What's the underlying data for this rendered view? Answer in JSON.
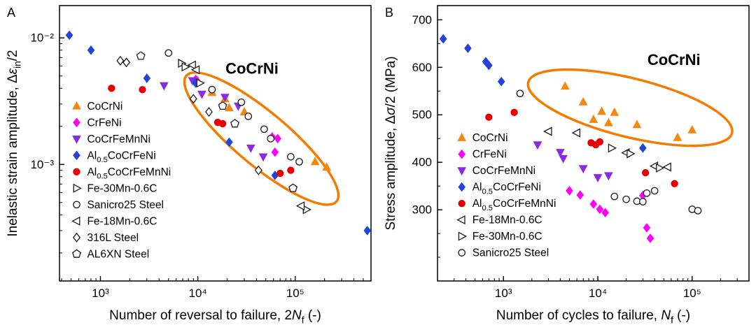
{
  "figure": {
    "background": "#ffffff"
  },
  "chart_data": [
    {
      "type": "scatter",
      "panel_label": "A",
      "x_scale": "log",
      "y_scale": "log",
      "xlim": [
        380,
        600000
      ],
      "ylim": [
        0.00012,
        0.018
      ],
      "x_ticks": [
        {
          "v": 1000,
          "label": "10³"
        },
        {
          "v": 10000,
          "label": "10⁴"
        },
        {
          "v": 100000,
          "label": "10⁵"
        }
      ],
      "y_ticks": [
        {
          "v": 0.001,
          "label": "10⁻³"
        },
        {
          "v": 0.01,
          "label": "10⁻²"
        }
      ],
      "xlabel_segments": [
        {
          "t": "Number of reversal to failure, 2"
        },
        {
          "t": "N",
          "i": true
        },
        {
          "t": "f",
          "sub": true
        },
        {
          "t": " (-)"
        }
      ],
      "ylabel_segments": [
        {
          "t": "Inelastic strain amplitude, Δ"
        },
        {
          "t": "ε",
          "i": true
        },
        {
          "t": "in",
          "sub": true
        },
        {
          "t": "/2"
        }
      ],
      "legend_pos": {
        "fx": 0.055,
        "fy": 0.365
      },
      "annotation": {
        "label": "CoCrNi",
        "color": "#F57C00",
        "cx": 45000,
        "cy": 0.0016,
        "rx": 140,
        "ry": 38,
        "rotate": 40,
        "label_cx": 36000,
        "label_cy": 0.0052
      },
      "series": [
        {
          "name": "CoCrNi",
          "marker": "triangle-up",
          "color": "#F5870F",
          "filled": true,
          "label_segments": [
            {
              "t": "CoCrNi"
            }
          ],
          "points": [
            [
              10000,
              0.0046
            ],
            [
              14000,
              0.0037
            ],
            [
              19000,
              0.0033
            ],
            [
              21000,
              0.0028
            ],
            [
              30000,
              0.0026
            ],
            [
              160000,
              0.00105
            ],
            [
              210000,
              0.00095
            ]
          ]
        },
        {
          "name": "CrFeNi",
          "marker": "diamond",
          "color": "#FF00FF",
          "filled": true,
          "label_segments": [
            {
              "t": "CrFeNi"
            }
          ],
          "points": [
            [
              9500,
              0.0047
            ],
            [
              58000,
              0.00165
            ],
            [
              66000,
              0.0016
            ],
            [
              62000,
              0.00125
            ]
          ]
        },
        {
          "name": "CoCrFeMnNi",
          "marker": "triangle-down",
          "color": "#8A2BE2",
          "filled": true,
          "label_segments": [
            {
              "t": "CoCrFeMnNi"
            }
          ],
          "points": [
            [
              4500,
              0.0042
            ],
            [
              8800,
              0.0046
            ],
            [
              11000,
              0.0036
            ],
            [
              19000,
              0.0034
            ],
            [
              26000,
              0.0029
            ],
            [
              35000,
              0.00135
            ],
            [
              47000,
              0.00115
            ]
          ]
        },
        {
          "name": "Al0.5CoCrFeNi",
          "marker": "diamond",
          "color": "#2244DD",
          "filled": true,
          "label_segments": [
            {
              "t": "Al"
            },
            {
              "t": "0.5",
              "sub": true
            },
            {
              "t": "CoCrFeNi"
            }
          ],
          "points": [
            [
              480,
              0.0105
            ],
            [
              800,
              0.008
            ],
            [
              3000,
              0.0048
            ],
            [
              9500,
              0.0044
            ],
            [
              21000,
              0.0015
            ],
            [
              62000,
              0.00082
            ],
            [
              550000,
              0.0003
            ]
          ]
        },
        {
          "name": "Al0.5CoCrFeMnNi",
          "marker": "circle",
          "color": "#E60000",
          "filled": true,
          "label_segments": [
            {
              "t": "Al"
            },
            {
              "t": "0.5",
              "sub": true
            },
            {
              "t": "CoCrFeMnNi"
            }
          ],
          "points": [
            [
              1300,
              0.004
            ],
            [
              2700,
              0.0039
            ],
            [
              16000,
              0.00215
            ],
            [
              18000,
              0.0021
            ],
            [
              70000,
              0.00085
            ],
            [
              90000,
              0.0009
            ]
          ]
        },
        {
          "name": "Fe-30Mn-0.6C",
          "marker": "triangle-right",
          "color": "#1a1a1a",
          "filled": false,
          "label_segments": [
            {
              "t": "Fe-30Mn-0.6C"
            }
          ],
          "points": [
            [
              6800,
              0.0063
            ],
            [
              7400,
              0.0059
            ],
            [
              10500,
              0.0044
            ],
            [
              130000,
              0.00044
            ]
          ]
        },
        {
          "name": "Sanicro25 Steel",
          "marker": "circle",
          "color": "#1a1a1a",
          "filled": false,
          "label_segments": [
            {
              "t": "Sanicro25 Steel"
            }
          ],
          "points": [
            [
              5000,
              0.0076
            ],
            [
              14000,
              0.0039
            ],
            [
              28000,
              0.0031
            ],
            [
              33000,
              0.0024
            ],
            [
              48000,
              0.0019
            ],
            [
              56000,
              0.0016
            ],
            [
              90000,
              0.00115
            ],
            [
              110000,
              0.00105
            ]
          ]
        },
        {
          "name": "Fe-18Mn-0.6C",
          "marker": "triangle-left",
          "color": "#1a1a1a",
          "filled": false,
          "label_segments": [
            {
              "t": "Fe-18Mn-0.6C"
            }
          ],
          "points": [
            [
              8800,
              0.0061
            ],
            [
              9600,
              0.0056
            ],
            [
              115000,
              0.00047
            ]
          ]
        },
        {
          "name": "316L Steel",
          "marker": "diamond",
          "color": "#1a1a1a",
          "filled": false,
          "label_segments": [
            {
              "t": "316L Steel"
            }
          ],
          "points": [
            [
              1600,
              0.0066
            ],
            [
              1850,
              0.0064
            ],
            [
              9000,
              0.0033
            ],
            [
              13000,
              0.0026
            ],
            [
              42000,
              0.0009
            ]
          ]
        },
        {
          "name": "AL6XN Steel",
          "marker": "pentagon",
          "color": "#1a1a1a",
          "filled": false,
          "label_segments": [
            {
              "t": "AL6XN Steel"
            }
          ],
          "points": [
            [
              2600,
              0.0072
            ],
            [
              18000,
              0.0029
            ],
            [
              24000,
              0.0021
            ],
            [
              95000,
              0.00065
            ]
          ]
        }
      ]
    },
    {
      "type": "scatter",
      "panel_label": "B",
      "x_scale": "log",
      "y_scale": "linear",
      "xlim": [
        200,
        400000
      ],
      "ylim": [
        150,
        730
      ],
      "y_minor_step": 50,
      "x_ticks": [
        {
          "v": 1000,
          "label": "10³"
        },
        {
          "v": 10000,
          "label": "10⁴"
        },
        {
          "v": 100000,
          "label": "10⁵"
        }
      ],
      "y_ticks": [
        {
          "v": 300,
          "label": "300"
        },
        {
          "v": 400,
          "label": "400"
        },
        {
          "v": 500,
          "label": "500"
        },
        {
          "v": 600,
          "label": "600"
        },
        {
          "v": 700,
          "label": "700"
        }
      ],
      "xlabel_segments": [
        {
          "t": "Number of cycles to failure, "
        },
        {
          "t": "N",
          "i": true
        },
        {
          "t": "f",
          "sub": true
        },
        {
          "t": " (-)"
        }
      ],
      "ylabel_segments": [
        {
          "t": "Stress amplitude, Δ"
        },
        {
          "t": "σ",
          "i": true
        },
        {
          "t": "/2 (MPa)"
        }
      ],
      "legend_pos": {
        "fx": 0.078,
        "fy": 0.48
      },
      "annotation": {
        "label": "CoCrNi",
        "color": "#F57C00",
        "cx": 22000,
        "cy": 515,
        "rx": 150,
        "ry": 42,
        "rotate": 14,
        "label_cx": 64000,
        "label_cy": 605
      },
      "series": [
        {
          "name": "CoCrNi",
          "marker": "triangle-up",
          "color": "#F5870F",
          "filled": true,
          "label_segments": [
            {
              "t": "CoCrNi"
            }
          ],
          "points": [
            [
              4500,
              560
            ],
            [
              7000,
              527
            ],
            [
              9000,
              490
            ],
            [
              11000,
              507
            ],
            [
              15000,
              505
            ],
            [
              13000,
              483
            ],
            [
              26000,
              479
            ],
            [
              70000,
              452
            ],
            [
              100000,
              468
            ]
          ]
        },
        {
          "name": "CrFeNi",
          "marker": "diamond",
          "color": "#FF00FF",
          "filled": true,
          "label_segments": [
            {
              "t": "CrFeNi"
            }
          ],
          "points": [
            [
              5000,
              340
            ],
            [
              6500,
              331
            ],
            [
              9000,
              312
            ],
            [
              10500,
              301
            ],
            [
              12000,
              294
            ],
            [
              30000,
              330
            ],
            [
              33000,
              262
            ],
            [
              36000,
              240
            ]
          ]
        },
        {
          "name": "CoCrFeMnNi",
          "marker": "triangle-down",
          "color": "#8A2BE2",
          "filled": true,
          "label_segments": [
            {
              "t": "CoCrFeMnNi"
            }
          ],
          "points": [
            [
              2300,
              437
            ],
            [
              4000,
              421
            ],
            [
              4300,
              408
            ],
            [
              7000,
              387
            ],
            [
              10000,
              368
            ],
            [
              13000,
              372
            ]
          ]
        },
        {
          "name": "Al0.5CoCrFeNi",
          "marker": "diamond",
          "color": "#2244DD",
          "filled": true,
          "label_segments": [
            {
              "t": "Al"
            },
            {
              "t": "0.5",
              "sub": true
            },
            {
              "t": "CoCrFeNi"
            }
          ],
          "points": [
            [
              230,
              660
            ],
            [
              420,
              640
            ],
            [
              650,
              612
            ],
            [
              700,
              604
            ],
            [
              950,
              570
            ],
            [
              30000,
              430
            ]
          ]
        },
        {
          "name": "Al0.5CoCrFeMnNi",
          "marker": "circle",
          "color": "#E60000",
          "filled": true,
          "label_segments": [
            {
              "t": "Al"
            },
            {
              "t": "0.5",
              "sub": true
            },
            {
              "t": "CoCrFeMnNi"
            }
          ],
          "points": [
            [
              700,
              495
            ],
            [
              1300,
              505
            ],
            [
              8500,
              441
            ],
            [
              9500,
              437
            ],
            [
              10500,
              443
            ],
            [
              32000,
              378
            ],
            [
              65000,
              355
            ]
          ]
        },
        {
          "name": "Fe-18Mn-0.6C",
          "marker": "triangle-left",
          "color": "#1a1a1a",
          "filled": false,
          "label_segments": [
            {
              "t": "Fe-18Mn-0.6C"
            }
          ],
          "points": [
            [
              3000,
              465
            ],
            [
              6000,
              462
            ],
            [
              20000,
              420
            ],
            [
              40000,
              392
            ],
            [
              55000,
              390
            ]
          ]
        },
        {
          "name": "Fe-30Mn-0.6C",
          "marker": "triangle-right",
          "color": "#1a1a1a",
          "filled": false,
          "label_segments": [
            {
              "t": "Fe-30Mn-0.6C"
            }
          ],
          "points": [
            [
              14000,
              430
            ],
            [
              22000,
              418
            ],
            [
              45000,
              388
            ]
          ]
        },
        {
          "name": "Sanicro25 Steel",
          "marker": "circle",
          "color": "#1a1a1a",
          "filled": false,
          "label_segments": [
            {
              "t": "Sanicro25 Steel"
            }
          ],
          "points": [
            [
              1500,
              545
            ],
            [
              15000,
              328
            ],
            [
              20000,
              322
            ],
            [
              26000,
              318
            ],
            [
              30000,
              317
            ],
            [
              33000,
              335
            ],
            [
              40000,
              340
            ],
            [
              100000,
              301
            ],
            [
              115000,
              298
            ]
          ]
        }
      ]
    }
  ]
}
